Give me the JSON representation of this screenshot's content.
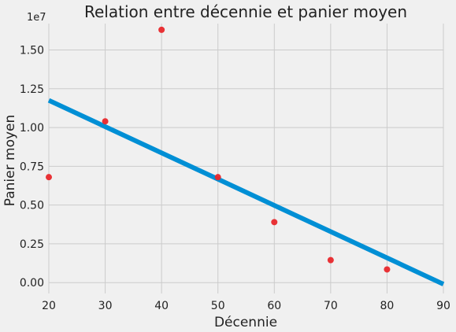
{
  "chart_data": {
    "type": "scatter",
    "title": "Relation entre décennie et panier moyen",
    "xlabel": "Décennie",
    "ylabel": "Panier moyen",
    "y_offset_label": "1e7",
    "xlim": [
      20,
      90
    ],
    "ylim": [
      -0.07,
      1.67
    ],
    "x_ticks": [
      20,
      30,
      40,
      50,
      60,
      70,
      80,
      90
    ],
    "x_tick_labels": [
      "20",
      "30",
      "40",
      "50",
      "60",
      "70",
      "80",
      "90"
    ],
    "y_ticks": [
      0.0,
      0.25,
      0.5,
      0.75,
      1.0,
      1.25,
      1.5
    ],
    "y_tick_labels": [
      "0.00",
      "0.25",
      "0.50",
      "0.75",
      "1.00",
      "1.25",
      "1.50"
    ],
    "grid": true,
    "points": [
      {
        "x": 20,
        "y": 0.68
      },
      {
        "x": 30,
        "y": 1.04
      },
      {
        "x": 40,
        "y": 1.63
      },
      {
        "x": 50,
        "y": 0.68
      },
      {
        "x": 60,
        "y": 0.39
      },
      {
        "x": 70,
        "y": 0.145
      },
      {
        "x": 80,
        "y": 0.085
      }
    ],
    "regression_line": {
      "x": [
        20,
        90
      ],
      "y": [
        1.175,
        -0.01
      ]
    },
    "colors": {
      "points": "#e8272b",
      "line": "#008fd5",
      "grid": "#cbcbcb",
      "background": "#f0f0f0",
      "text": "#222222"
    }
  }
}
